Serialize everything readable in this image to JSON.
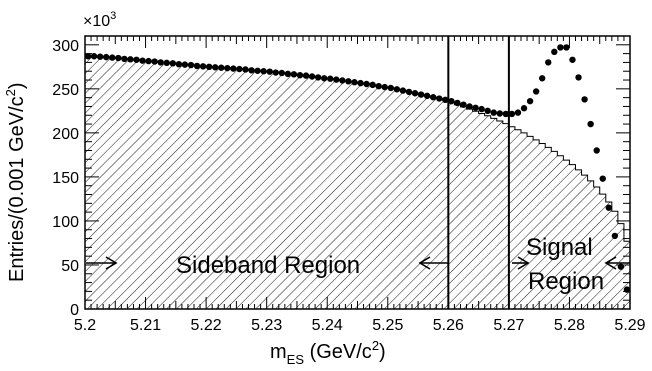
{
  "chart_data": {
    "type": "histogram",
    "x_axis": {
      "label_main": "m",
      "label_sub": "ES",
      "label_unit_pre": " (GeV/c",
      "label_unit_sup": "2",
      "label_unit_post": ")",
      "range": [
        5.2,
        5.29
      ],
      "ticks": [
        "5.2",
        "5.21",
        "5.22",
        "5.23",
        "5.24",
        "5.25",
        "5.26",
        "5.27",
        "5.28",
        "5.29"
      ]
    },
    "y_axis": {
      "label_main": "Entries/(0.001 GeV/c",
      "label_sup": "2",
      "label_post": ")",
      "range": [
        0,
        310
      ],
      "multiplier_base": "×10",
      "multiplier_exp": "3",
      "ticks": [
        "0",
        "50",
        "100",
        "150",
        "200",
        "250",
        "300"
      ]
    },
    "bin_width": 0.001,
    "data_points": [
      {
        "x": 5.2005,
        "y": 287
      },
      {
        "x": 5.2015,
        "y": 287
      },
      {
        "x": 5.2025,
        "y": 286.5
      },
      {
        "x": 5.2035,
        "y": 286
      },
      {
        "x": 5.2045,
        "y": 285.5
      },
      {
        "x": 5.2055,
        "y": 285
      },
      {
        "x": 5.2065,
        "y": 284
      },
      {
        "x": 5.2075,
        "y": 283.5
      },
      {
        "x": 5.2085,
        "y": 283
      },
      {
        "x": 5.2095,
        "y": 282
      },
      {
        "x": 5.2105,
        "y": 281.5
      },
      {
        "x": 5.2115,
        "y": 281
      },
      {
        "x": 5.2125,
        "y": 280
      },
      {
        "x": 5.2135,
        "y": 279.5
      },
      {
        "x": 5.2145,
        "y": 279
      },
      {
        "x": 5.2155,
        "y": 278
      },
      {
        "x": 5.2165,
        "y": 277.5
      },
      {
        "x": 5.2175,
        "y": 277
      },
      {
        "x": 5.2185,
        "y": 276
      },
      {
        "x": 5.2195,
        "y": 275.5
      },
      {
        "x": 5.2205,
        "y": 275
      },
      {
        "x": 5.2215,
        "y": 274.5
      },
      {
        "x": 5.2225,
        "y": 274
      },
      {
        "x": 5.2235,
        "y": 273.5
      },
      {
        "x": 5.2245,
        "y": 273
      },
      {
        "x": 5.2255,
        "y": 272.5
      },
      {
        "x": 5.2265,
        "y": 272
      },
      {
        "x": 5.2275,
        "y": 271
      },
      {
        "x": 5.2285,
        "y": 270.5
      },
      {
        "x": 5.2295,
        "y": 270
      },
      {
        "x": 5.2305,
        "y": 269.5
      },
      {
        "x": 5.2315,
        "y": 268.5
      },
      {
        "x": 5.2325,
        "y": 268
      },
      {
        "x": 5.2335,
        "y": 267
      },
      {
        "x": 5.2345,
        "y": 266.5
      },
      {
        "x": 5.2355,
        "y": 265.5
      },
      {
        "x": 5.2365,
        "y": 265
      },
      {
        "x": 5.2375,
        "y": 264
      },
      {
        "x": 5.2385,
        "y": 263
      },
      {
        "x": 5.2395,
        "y": 262
      },
      {
        "x": 5.2405,
        "y": 261.5
      },
      {
        "x": 5.2415,
        "y": 260.5
      },
      {
        "x": 5.2425,
        "y": 259.5
      },
      {
        "x": 5.2435,
        "y": 258.5
      },
      {
        "x": 5.2445,
        "y": 257.5
      },
      {
        "x": 5.2455,
        "y": 256.5
      },
      {
        "x": 5.2465,
        "y": 255.5
      },
      {
        "x": 5.2475,
        "y": 254.5
      },
      {
        "x": 5.2485,
        "y": 253
      },
      {
        "x": 5.2495,
        "y": 252
      },
      {
        "x": 5.2505,
        "y": 251
      },
      {
        "x": 5.2515,
        "y": 249.5
      },
      {
        "x": 5.2525,
        "y": 248
      },
      {
        "x": 5.2535,
        "y": 246.5
      },
      {
        "x": 5.2545,
        "y": 245
      },
      {
        "x": 5.2555,
        "y": 243.5
      },
      {
        "x": 5.2565,
        "y": 242
      },
      {
        "x": 5.2575,
        "y": 240.5
      },
      {
        "x": 5.2585,
        "y": 239
      },
      {
        "x": 5.2595,
        "y": 237.5
      },
      {
        "x": 5.2605,
        "y": 236
      },
      {
        "x": 5.2615,
        "y": 234
      },
      {
        "x": 5.2625,
        "y": 232
      },
      {
        "x": 5.2635,
        "y": 230
      },
      {
        "x": 5.2645,
        "y": 228.5
      },
      {
        "x": 5.2655,
        "y": 227
      },
      {
        "x": 5.2665,
        "y": 225
      },
      {
        "x": 5.2675,
        "y": 223
      },
      {
        "x": 5.2685,
        "y": 222
      },
      {
        "x": 5.2695,
        "y": 221.5
      },
      {
        "x": 5.2705,
        "y": 221.5
      },
      {
        "x": 5.2715,
        "y": 223
      },
      {
        "x": 5.2725,
        "y": 228
      },
      {
        "x": 5.2735,
        "y": 236
      },
      {
        "x": 5.2745,
        "y": 247
      },
      {
        "x": 5.2755,
        "y": 262
      },
      {
        "x": 5.2765,
        "y": 280
      },
      {
        "x": 5.2775,
        "y": 292
      },
      {
        "x": 5.2785,
        "y": 297
      },
      {
        "x": 5.2795,
        "y": 297
      },
      {
        "x": 5.2805,
        "y": 283
      },
      {
        "x": 5.2815,
        "y": 263
      },
      {
        "x": 5.2825,
        "y": 238
      },
      {
        "x": 5.2835,
        "y": 210
      },
      {
        "x": 5.2845,
        "y": 180
      },
      {
        "x": 5.2855,
        "y": 148
      },
      {
        "x": 5.2865,
        "y": 115
      },
      {
        "x": 5.2875,
        "y": 83
      },
      {
        "x": 5.2885,
        "y": 48
      },
      {
        "x": 5.2895,
        "y": 22
      }
    ],
    "hatched_histogram": [
      287,
      287,
      286.5,
      286,
      285.5,
      285,
      284,
      283.5,
      283,
      282,
      281.5,
      281,
      280,
      279.5,
      279,
      278,
      277.5,
      277,
      276,
      275.5,
      275,
      274.5,
      274,
      273.5,
      273,
      272.5,
      272,
      271,
      270.5,
      270,
      269.5,
      268.5,
      268,
      267,
      266.5,
      265.5,
      265,
      264,
      263,
      262,
      261.5,
      260.5,
      259.5,
      258.5,
      257.5,
      256.5,
      255.5,
      254.5,
      253,
      252,
      251,
      249.5,
      248,
      246.5,
      245,
      243.5,
      242,
      240.5,
      239,
      237.5,
      234,
      232,
      229.5,
      227,
      224.5,
      222,
      219.5,
      216.5,
      213.5,
      210.5,
      207,
      203.5,
      200,
      196,
      192,
      188,
      183.5,
      179,
      174,
      169,
      164,
      158,
      152,
      145.5,
      138.5,
      130.5,
      121.5,
      111,
      97,
      77
    ],
    "region_boundaries": [
      5.26,
      5.27
    ],
    "regions": {
      "sideband_label": "Sideband Region",
      "signal_label_1": "Signal",
      "signal_label_2": "Region"
    },
    "colors": {
      "axis": "#000000",
      "markers": "#000000",
      "hatch": "#000000",
      "background": "#ffffff"
    }
  }
}
